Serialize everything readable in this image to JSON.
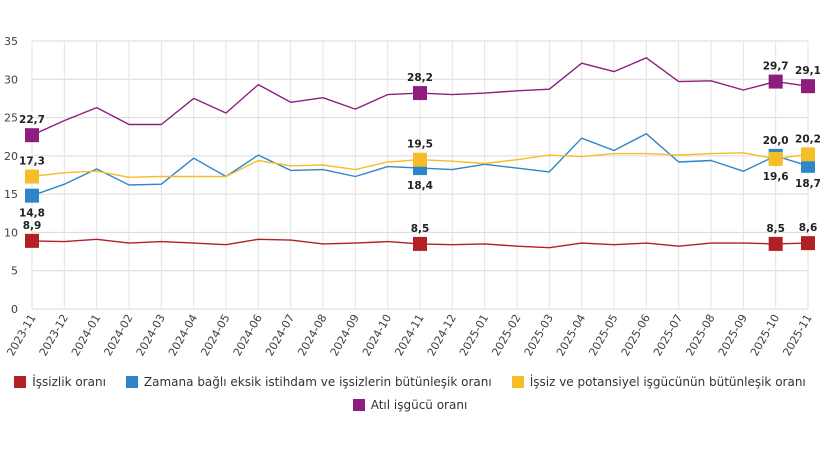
{
  "chart_data": {
    "type": "line",
    "title": "",
    "xlabel": "",
    "ylabel": "",
    "ylim": [
      0,
      35
    ],
    "yticks": [
      0,
      5,
      10,
      15,
      20,
      25,
      30,
      35
    ],
    "grid": true,
    "legend_position": "bottom",
    "categories": [
      "2023-11",
      "2023-12",
      "2024-01",
      "2024-02",
      "2024-03",
      "2024-04",
      "2024-05",
      "2024-06",
      "2024-07",
      "2024-08",
      "2024-09",
      "2024-10",
      "2024-11",
      "2024-12",
      "2025-01",
      "2025-02",
      "2025-03",
      "2025-04",
      "2025-05",
      "2025-06",
      "2025-07",
      "2025-08",
      "2025-09",
      "2025-10",
      "2025-11"
    ],
    "series": [
      {
        "name": "İşsizlik oranı",
        "color": "#b21f24",
        "values": [
          8.9,
          8.8,
          9.1,
          8.6,
          8.8,
          8.6,
          8.4,
          9.1,
          9.0,
          8.5,
          8.6,
          8.8,
          8.5,
          8.4,
          8.5,
          8.2,
          8.0,
          8.6,
          8.4,
          8.6,
          8.2,
          8.6,
          8.6,
          8.5,
          8.6
        ],
        "labels": [
          {
            "index": 0,
            "text": "8,9",
            "pos": "above"
          },
          {
            "index": 12,
            "text": "8,5",
            "pos": "above"
          },
          {
            "index": 23,
            "text": "8,5",
            "pos": "above"
          },
          {
            "index": 24,
            "text": "8,6",
            "pos": "above"
          }
        ]
      },
      {
        "name": "Zamana bağlı eksik istihdam ve işsizlerin bütünleşik oranı",
        "color": "#2e86c8",
        "values": [
          14.8,
          16.3,
          18.3,
          16.2,
          16.3,
          19.7,
          17.3,
          20.1,
          18.1,
          18.2,
          17.3,
          18.6,
          18.4,
          18.2,
          18.9,
          18.4,
          17.9,
          22.3,
          20.7,
          22.9,
          19.2,
          19.4,
          18.0,
          20.0,
          18.7
        ],
        "labels": [
          {
            "index": 0,
            "text": "14,8",
            "pos": "below"
          },
          {
            "index": 12,
            "text": "18,4",
            "pos": "below"
          },
          {
            "index": 23,
            "text": "20,0",
            "pos": "above"
          },
          {
            "index": 24,
            "text": "18,7",
            "pos": "below"
          }
        ]
      },
      {
        "name": "İşsiz ve potansiyel işgücünün bütünleşik oranı",
        "color": "#f5bd27",
        "values": [
          17.3,
          17.8,
          18.0,
          17.2,
          17.3,
          17.3,
          17.3,
          19.4,
          18.7,
          18.8,
          18.2,
          19.2,
          19.5,
          19.3,
          19.0,
          19.5,
          20.1,
          19.9,
          20.3,
          20.3,
          20.1,
          20.3,
          20.4,
          19.6,
          20.2
        ],
        "labels": [
          {
            "index": 0,
            "text": "17,3",
            "pos": "above"
          },
          {
            "index": 12,
            "text": "19,5",
            "pos": "above"
          },
          {
            "index": 23,
            "text": "19,6",
            "pos": "below"
          },
          {
            "index": 24,
            "text": "20,2",
            "pos": "above"
          }
        ]
      },
      {
        "name": "Atıl işgücü oranı",
        "color": "#8e1e7e",
        "values": [
          22.7,
          24.6,
          26.3,
          24.1,
          24.1,
          27.5,
          25.6,
          29.3,
          27.0,
          27.6,
          26.1,
          28.0,
          28.2,
          28.0,
          28.2,
          28.5,
          28.7,
          32.1,
          31.0,
          32.8,
          29.7,
          29.8,
          28.6,
          29.7,
          29.1
        ],
        "labels": [
          {
            "index": 0,
            "text": "22,7",
            "pos": "above"
          },
          {
            "index": 12,
            "text": "28,2",
            "pos": "above"
          },
          {
            "index": 23,
            "text": "29,7",
            "pos": "above"
          },
          {
            "index": 24,
            "text": "29,1",
            "pos": "above"
          }
        ]
      }
    ]
  }
}
